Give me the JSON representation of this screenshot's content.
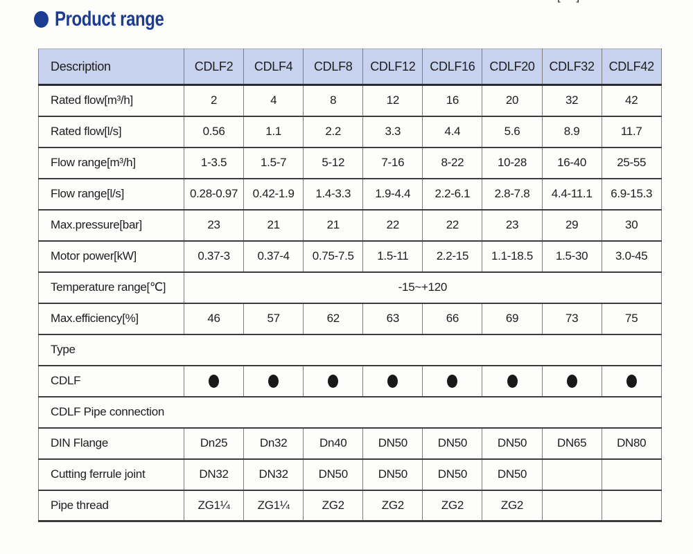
{
  "page": {
    "title": "Product range",
    "top_right_fragment": "[ ]"
  },
  "colors": {
    "title": "#1b3c90",
    "header_bg": "#c6d2ee",
    "text": "#1d1d1d",
    "dot": "#191919"
  },
  "table": {
    "columns": [
      "Description",
      "CDLF2",
      "CDLF4",
      "CDLF8",
      "CDLF12",
      "CDLF16",
      "CDLF20",
      "CDLF32",
      "CDLF42"
    ],
    "rows": [
      {
        "label": "Rated flow[m³/h]",
        "type": "values",
        "values": [
          "2",
          "4",
          "8",
          "12",
          "16",
          "20",
          "32",
          "42"
        ]
      },
      {
        "label": "Rated flow[l/s]",
        "type": "values",
        "values": [
          "0.56",
          "1.1",
          "2.2",
          "3.3",
          "4.4",
          "5.6",
          "8.9",
          "11.7"
        ]
      },
      {
        "label": "Flow range[m³/h]",
        "type": "values",
        "values": [
          "1-3.5",
          "1.5-7",
          "5-12",
          "7-16",
          "8-22",
          "10-28",
          "16-40",
          "25-55"
        ]
      },
      {
        "label": "Flow range[l/s]",
        "type": "values",
        "values": [
          "0.28-0.97",
          "0.42-1.9",
          "1.4-3.3",
          "1.9-4.4",
          "2.2-6.1",
          "2.8-7.8",
          "4.4-11.1",
          "6.9-15.3"
        ]
      },
      {
        "label": "Max.pressure[bar]",
        "type": "values",
        "values": [
          "23",
          "21",
          "21",
          "22",
          "22",
          "23",
          "29",
          "30"
        ]
      },
      {
        "label": "Motor power[kW]",
        "type": "values",
        "values": [
          "0.37-3",
          "0.37-4",
          "0.75-7.5",
          "1.5-11",
          "2.2-15",
          "1.1-18.5",
          "1.5-30",
          "3.0-45"
        ]
      },
      {
        "label": "Temperature range[℃]",
        "type": "merged",
        "merged_value": "-15~+120"
      },
      {
        "label": "Max.efficiency[%]",
        "type": "values",
        "values": [
          "46",
          "57",
          "62",
          "63",
          "66",
          "69",
          "73",
          "75"
        ]
      },
      {
        "label": "Type",
        "type": "section"
      },
      {
        "label": "CDLF",
        "type": "dots",
        "values": [
          "●",
          "●",
          "●",
          "●",
          "●",
          "●",
          "●",
          "●"
        ]
      },
      {
        "label": "CDLF Pipe connection",
        "type": "section"
      },
      {
        "label": "DIN Flange",
        "type": "values",
        "values": [
          "Dn25",
          "Dn32",
          "Dn40",
          "DN50",
          "DN50",
          "DN50",
          "DN65",
          "DN80"
        ]
      },
      {
        "label": "Cutting ferrule joint",
        "type": "values",
        "values": [
          "DN32",
          "DN32",
          "DN50",
          "DN50",
          "DN50",
          "DN50",
          "",
          ""
        ]
      },
      {
        "label": "Pipe thread",
        "type": "values",
        "values": [
          "ZG1¼",
          "ZG1¼",
          "ZG2",
          "ZG2",
          "ZG2",
          "ZG2",
          "",
          ""
        ]
      }
    ]
  }
}
